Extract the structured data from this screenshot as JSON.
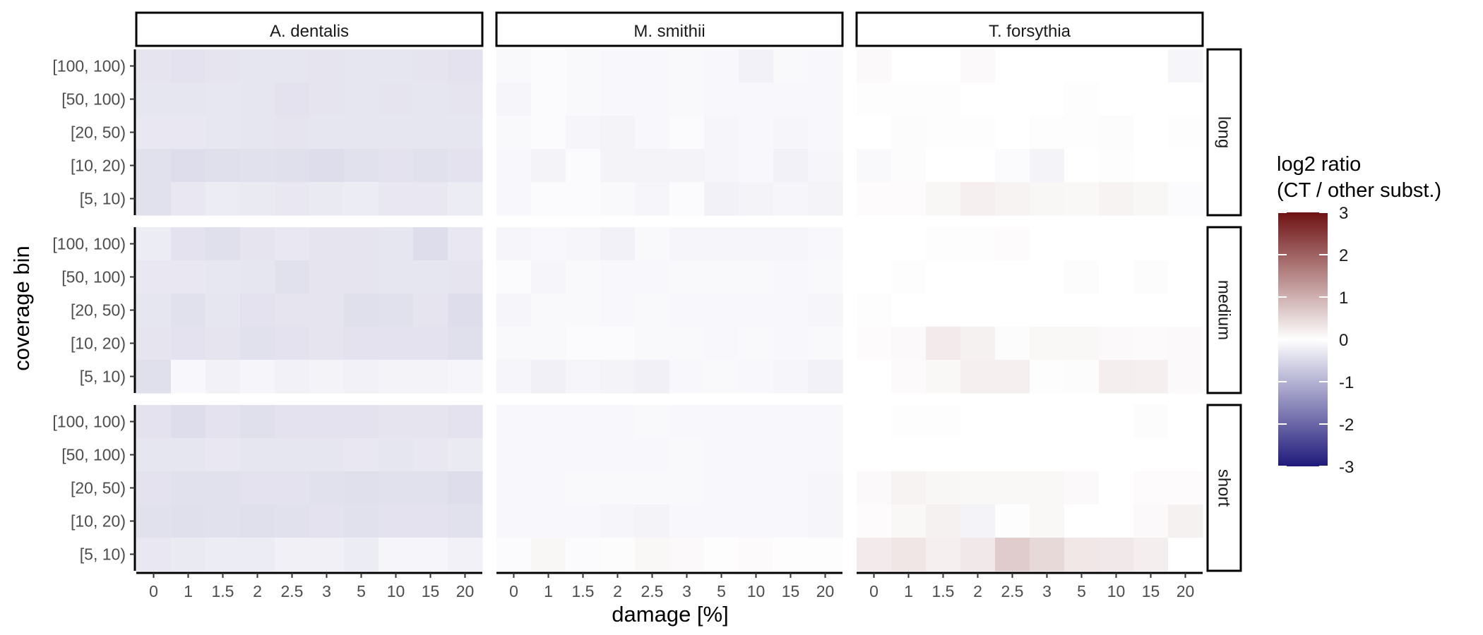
{
  "chart_data": {
    "type": "heatmap",
    "xlabel": "damage [%]",
    "ylabel": "coverage bin",
    "x_categories": [
      "0",
      "1",
      "1.5",
      "2",
      "2.5",
      "3",
      "5",
      "10",
      "15",
      "20"
    ],
    "y_categories": [
      "[100, 100)",
      "[50, 100)",
      "[20, 50)",
      "[10, 20)",
      "[5, 10)"
    ],
    "col_facets": [
      "A. dentalis",
      "M. smithii",
      "T. forsythia"
    ],
    "row_facets": [
      "long",
      "medium",
      "short"
    ],
    "legend": {
      "title_line1": "log2 ratio",
      "title_line2": "(CT / other subst.)",
      "range": [
        -3,
        3
      ],
      "ticks": [
        "3",
        "2",
        "1",
        "0",
        "-1",
        "-2",
        "-3"
      ],
      "colors": {
        "low": "#1f1a7a",
        "mid": "#ffffff",
        "high": "#6e1212"
      },
      "placement": "right"
    },
    "panels": {
      "A. dentalis": {
        "long": [
          [
            -0.35,
            -0.38,
            -0.35,
            -0.33,
            -0.33,
            -0.35,
            -0.33,
            -0.33,
            -0.35,
            -0.38
          ],
          [
            -0.33,
            -0.33,
            -0.32,
            -0.33,
            -0.38,
            -0.35,
            -0.33,
            -0.35,
            -0.33,
            -0.35
          ],
          [
            -0.3,
            -0.3,
            -0.32,
            -0.33,
            -0.35,
            -0.33,
            -0.33,
            -0.33,
            -0.33,
            -0.33
          ],
          [
            -0.4,
            -0.45,
            -0.42,
            -0.4,
            -0.42,
            -0.45,
            -0.4,
            -0.38,
            -0.4,
            -0.38
          ],
          [
            -0.4,
            -0.3,
            -0.25,
            -0.28,
            -0.3,
            -0.28,
            -0.25,
            -0.3,
            -0.3,
            -0.25
          ]
        ],
        "medium": [
          [
            -0.25,
            -0.38,
            -0.42,
            -0.35,
            -0.3,
            -0.35,
            -0.35,
            -0.33,
            -0.45,
            -0.3
          ],
          [
            -0.3,
            -0.3,
            -0.32,
            -0.33,
            -0.4,
            -0.35,
            -0.35,
            -0.33,
            -0.33,
            -0.35
          ],
          [
            -0.33,
            -0.4,
            -0.33,
            -0.38,
            -0.35,
            -0.35,
            -0.42,
            -0.4,
            -0.35,
            -0.45
          ],
          [
            -0.35,
            -0.38,
            -0.35,
            -0.4,
            -0.38,
            -0.35,
            -0.38,
            -0.38,
            -0.38,
            -0.42
          ],
          [
            -0.42,
            -0.1,
            -0.18,
            -0.12,
            -0.18,
            -0.15,
            -0.18,
            -0.15,
            -0.15,
            -0.12
          ]
        ],
        "short": [
          [
            -0.38,
            -0.45,
            -0.38,
            -0.42,
            -0.38,
            -0.38,
            -0.38,
            -0.35,
            -0.35,
            -0.38
          ],
          [
            -0.33,
            -0.33,
            -0.3,
            -0.33,
            -0.33,
            -0.33,
            -0.3,
            -0.33,
            -0.3,
            -0.28
          ],
          [
            -0.38,
            -0.4,
            -0.4,
            -0.38,
            -0.38,
            -0.4,
            -0.42,
            -0.4,
            -0.4,
            -0.45
          ],
          [
            -0.4,
            -0.42,
            -0.4,
            -0.42,
            -0.4,
            -0.38,
            -0.4,
            -0.38,
            -0.38,
            -0.4
          ],
          [
            -0.3,
            -0.28,
            -0.25,
            -0.25,
            -0.2,
            -0.2,
            -0.25,
            -0.12,
            -0.12,
            -0.18
          ]
        ]
      },
      "M. smithii": {
        "long": [
          [
            -0.08,
            -0.05,
            -0.08,
            -0.1,
            -0.1,
            -0.08,
            -0.1,
            -0.18,
            -0.08,
            -0.1
          ],
          [
            -0.12,
            -0.05,
            -0.08,
            -0.1,
            -0.1,
            -0.08,
            -0.1,
            -0.1,
            -0.1,
            -0.1
          ],
          [
            -0.08,
            -0.05,
            -0.12,
            -0.15,
            -0.1,
            -0.05,
            -0.12,
            -0.1,
            -0.12,
            -0.1
          ],
          [
            -0.1,
            -0.15,
            -0.05,
            -0.15,
            -0.15,
            -0.15,
            -0.12,
            -0.1,
            -0.18,
            -0.12
          ],
          [
            -0.1,
            -0.05,
            -0.05,
            -0.08,
            -0.12,
            -0.05,
            -0.18,
            -0.15,
            -0.12,
            -0.15
          ]
        ],
        "medium": [
          [
            -0.12,
            -0.1,
            -0.12,
            -0.18,
            -0.08,
            -0.12,
            -0.12,
            -0.12,
            -0.12,
            -0.1
          ],
          [
            -0.05,
            -0.12,
            -0.08,
            -0.1,
            -0.1,
            -0.08,
            -0.08,
            -0.08,
            -0.1,
            -0.08
          ],
          [
            -0.12,
            -0.08,
            -0.08,
            -0.1,
            -0.08,
            -0.1,
            -0.1,
            -0.1,
            -0.1,
            -0.12
          ],
          [
            -0.08,
            -0.08,
            -0.05,
            -0.05,
            -0.08,
            -0.08,
            -0.1,
            -0.08,
            -0.1,
            -0.08
          ],
          [
            -0.12,
            -0.2,
            -0.12,
            -0.15,
            -0.2,
            -0.1,
            -0.08,
            -0.1,
            -0.12,
            -0.18
          ]
        ],
        "short": [
          [
            -0.1,
            -0.1,
            -0.1,
            -0.1,
            -0.08,
            -0.1,
            -0.1,
            -0.1,
            -0.1,
            -0.1
          ],
          [
            -0.1,
            -0.1,
            -0.1,
            -0.1,
            -0.1,
            -0.08,
            -0.1,
            -0.1,
            -0.1,
            -0.1
          ],
          [
            -0.1,
            -0.1,
            -0.08,
            -0.08,
            -0.08,
            -0.08,
            -0.1,
            -0.1,
            -0.1,
            -0.12
          ],
          [
            -0.1,
            -0.1,
            -0.1,
            -0.12,
            -0.15,
            -0.1,
            -0.1,
            -0.1,
            -0.1,
            -0.12
          ],
          [
            -0.05,
            0.12,
            -0.05,
            0.04,
            0.1,
            0.08,
            -0.02,
            0.06,
            -0.02,
            -0.02
          ]
        ]
      },
      "T. forsythia": {
        "long": [
          [
            0.08,
            0.0,
            0.0,
            0.08,
            0.0,
            0.0,
            0.0,
            0.0,
            0.0,
            -0.12
          ],
          [
            0.03,
            0.02,
            0.03,
            0.0,
            0.0,
            0.0,
            -0.02,
            0.0,
            0.0,
            0.0
          ],
          [
            0.0,
            -0.04,
            -0.03,
            -0.03,
            0.0,
            -0.03,
            -0.03,
            -0.04,
            0.0,
            0.02
          ],
          [
            -0.08,
            0.04,
            0.0,
            0.0,
            -0.05,
            -0.15,
            0.0,
            0.02,
            0.0,
            0.0
          ],
          [
            0.05,
            0.05,
            0.12,
            0.2,
            0.15,
            0.12,
            0.1,
            0.15,
            0.12,
            -0.05
          ]
        ],
        "medium": [
          [
            0.0,
            0.0,
            0.03,
            0.03,
            0.05,
            0.0,
            0.0,
            0.0,
            0.0,
            0.0
          ],
          [
            0.0,
            0.02,
            0.0,
            0.0,
            0.0,
            0.0,
            0.04,
            0.0,
            0.04,
            0.0
          ],
          [
            0.03,
            0.0,
            0.0,
            0.0,
            0.0,
            0.0,
            0.0,
            0.0,
            0.0,
            0.0
          ],
          [
            0.05,
            0.08,
            0.25,
            0.18,
            0.04,
            0.1,
            0.1,
            0.08,
            0.06,
            0.08
          ],
          [
            0.0,
            0.06,
            0.1,
            0.2,
            0.2,
            0.02,
            0.04,
            0.22,
            0.2,
            0.08
          ]
        ],
        "short": [
          [
            0.0,
            0.02,
            0.03,
            0.0,
            0.0,
            0.0,
            0.0,
            0.0,
            0.04,
            0.0
          ],
          [
            0.0,
            0.0,
            0.0,
            0.0,
            0.0,
            0.0,
            0.0,
            0.0,
            0.0,
            0.0
          ],
          [
            0.08,
            0.15,
            0.12,
            0.1,
            0.1,
            0.1,
            0.08,
            0.0,
            0.05,
            0.05
          ],
          [
            0.05,
            0.1,
            0.18,
            -0.15,
            -0.02,
            0.1,
            0.0,
            0.0,
            0.08,
            0.18
          ],
          [
            0.25,
            0.32,
            0.2,
            0.28,
            0.65,
            0.48,
            0.3,
            0.28,
            0.22,
            0.0
          ]
        ]
      }
    }
  }
}
